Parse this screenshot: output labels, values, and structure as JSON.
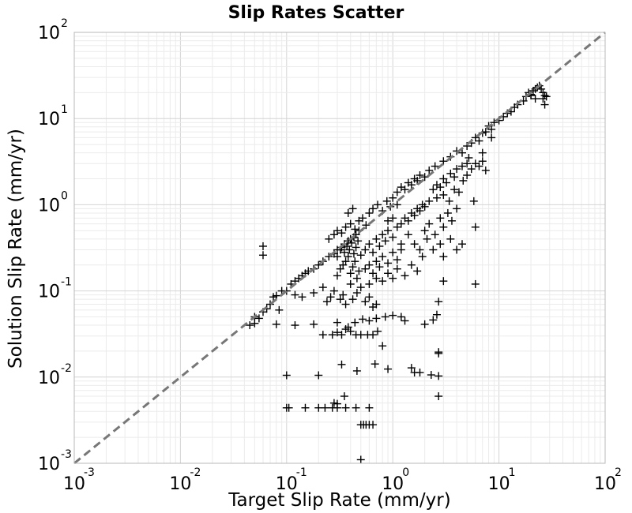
{
  "chart_data": {
    "type": "scatter",
    "title": "Slip Rates Scatter",
    "xlabel": "Target Slip Rate (mm/yr)",
    "ylabel": "Solution Slip Rate (mm/yr)",
    "xscale": "log",
    "yscale": "log",
    "xlim": [
      0.001,
      100
    ],
    "ylim": [
      0.001,
      100
    ],
    "grid": true,
    "marker": "plus",
    "marker_color": "#000000",
    "reference_line": {
      "type": "y=x",
      "style": "dashed",
      "color": "#777777"
    },
    "ticks": [
      {
        "base": "10",
        "exp": "-3",
        "value": 0.001
      },
      {
        "base": "10",
        "exp": "-2",
        "value": 0.01
      },
      {
        "base": "10",
        "exp": "-1",
        "value": 0.1
      },
      {
        "base": "10",
        "exp": "0",
        "value": 1
      },
      {
        "base": "10",
        "exp": "1",
        "value": 10
      },
      {
        "base": "10",
        "exp": "2",
        "value": 100
      }
    ],
    "points": [
      [
        0.1,
        0.0044
      ],
      [
        0.105,
        0.0044
      ],
      [
        0.15,
        0.0044
      ],
      [
        0.2,
        0.0044
      ],
      [
        0.23,
        0.0044
      ],
      [
        0.27,
        0.0044
      ],
      [
        0.3,
        0.0044
      ],
      [
        0.36,
        0.0044
      ],
      [
        0.45,
        0.0044
      ],
      [
        0.6,
        0.0044
      ],
      [
        0.28,
        0.005
      ],
      [
        0.3,
        0.0049
      ],
      [
        0.35,
        0.006
      ],
      [
        0.5,
        0.0028
      ],
      [
        0.53,
        0.0028
      ],
      [
        0.56,
        0.0028
      ],
      [
        0.6,
        0.0028
      ],
      [
        0.65,
        0.0028
      ],
      [
        0.5,
        0.0011
      ],
      [
        0.1,
        0.0105
      ],
      [
        0.2,
        0.0105
      ],
      [
        0.33,
        0.014
      ],
      [
        0.46,
        0.0118
      ],
      [
        0.68,
        0.0142
      ],
      [
        0.9,
        0.0124
      ],
      [
        1.5,
        0.0128
      ],
      [
        1.6,
        0.0113
      ],
      [
        1.8,
        0.0113
      ],
      [
        2.3,
        0.0106
      ],
      [
        2.7,
        0.0103
      ],
      [
        2.7,
        0.006
      ],
      [
        2.7,
        0.0188
      ],
      [
        2.7,
        0.0195
      ],
      [
        0.22,
        0.031
      ],
      [
        0.27,
        0.031
      ],
      [
        0.3,
        0.033
      ],
      [
        0.33,
        0.031
      ],
      [
        0.36,
        0.036
      ],
      [
        0.4,
        0.034
      ],
      [
        0.45,
        0.031
      ],
      [
        0.5,
        0.031
      ],
      [
        0.58,
        0.031
      ],
      [
        0.65,
        0.031
      ],
      [
        0.72,
        0.034
      ],
      [
        0.8,
        0.023
      ],
      [
        0.08,
        0.041
      ],
      [
        0.12,
        0.04
      ],
      [
        0.18,
        0.041
      ],
      [
        0.3,
        0.043
      ],
      [
        0.38,
        0.038
      ],
      [
        0.44,
        0.043
      ],
      [
        0.52,
        0.047
      ],
      [
        0.6,
        0.045
      ],
      [
        0.7,
        0.048
      ],
      [
        0.85,
        0.05
      ],
      [
        1.0,
        0.052
      ],
      [
        1.2,
        0.05
      ],
      [
        1.3,
        0.045
      ],
      [
        2.0,
        0.041
      ],
      [
        2.4,
        0.046
      ],
      [
        0.045,
        0.04
      ],
      [
        0.05,
        0.042
      ],
      [
        0.055,
        0.048
      ],
      [
        0.06,
        0.057
      ],
      [
        0.065,
        0.062
      ],
      [
        0.085,
        0.06
      ],
      [
        0.075,
        0.085
      ],
      [
        0.08,
        0.088
      ],
      [
        0.09,
        0.1
      ],
      [
        0.1,
        0.1
      ],
      [
        0.11,
        0.12
      ],
      [
        0.12,
        0.13
      ],
      [
        0.13,
        0.14
      ],
      [
        0.14,
        0.15
      ],
      [
        0.15,
        0.16
      ],
      [
        0.16,
        0.17
      ],
      [
        0.18,
        0.18
      ],
      [
        0.2,
        0.2
      ],
      [
        0.22,
        0.22
      ],
      [
        0.25,
        0.25
      ],
      [
        0.28,
        0.27
      ],
      [
        0.3,
        0.3
      ],
      [
        0.33,
        0.32
      ],
      [
        0.35,
        0.35
      ],
      [
        0.38,
        0.38
      ],
      [
        0.4,
        0.4
      ],
      [
        0.43,
        0.42
      ],
      [
        0.45,
        0.45
      ],
      [
        0.48,
        0.5
      ],
      [
        0.06,
        0.33
      ],
      [
        0.06,
        0.26
      ],
      [
        0.12,
        0.09
      ],
      [
        0.14,
        0.085
      ],
      [
        0.18,
        0.095
      ],
      [
        0.22,
        0.11
      ],
      [
        0.24,
        0.075
      ],
      [
        0.26,
        0.085
      ],
      [
        0.28,
        0.1
      ],
      [
        0.32,
        0.08
      ],
      [
        0.34,
        0.09
      ],
      [
        0.36,
        0.07
      ],
      [
        0.4,
        0.12
      ],
      [
        0.42,
        0.08
      ],
      [
        0.46,
        0.095
      ],
      [
        0.5,
        0.11
      ],
      [
        0.55,
        0.075
      ],
      [
        0.6,
        0.085
      ],
      [
        0.65,
        0.065
      ],
      [
        0.7,
        0.07
      ],
      [
        0.3,
        0.15
      ],
      [
        0.32,
        0.18
      ],
      [
        0.34,
        0.2
      ],
      [
        0.36,
        0.22
      ],
      [
        0.38,
        0.25
      ],
      [
        0.4,
        0.16
      ],
      [
        0.42,
        0.19
      ],
      [
        0.44,
        0.22
      ],
      [
        0.46,
        0.14
      ],
      [
        0.48,
        0.17
      ],
      [
        0.3,
        0.25
      ],
      [
        0.32,
        0.3
      ],
      [
        0.35,
        0.28
      ],
      [
        0.37,
        0.33
      ],
      [
        0.39,
        0.3
      ],
      [
        0.41,
        0.36
      ],
      [
        0.43,
        0.27
      ],
      [
        0.45,
        0.32
      ],
      [
        0.47,
        0.38
      ],
      [
        0.5,
        0.26
      ],
      [
        0.25,
        0.4
      ],
      [
        0.28,
        0.45
      ],
      [
        0.3,
        0.5
      ],
      [
        0.33,
        0.47
      ],
      [
        0.36,
        0.55
      ],
      [
        0.4,
        0.6
      ],
      [
        0.44,
        0.52
      ],
      [
        0.48,
        0.65
      ],
      [
        0.52,
        0.7
      ],
      [
        0.56,
        0.58
      ],
      [
        0.38,
        0.8
      ],
      [
        0.42,
        0.9
      ],
      [
        0.6,
        0.8
      ],
      [
        0.65,
        0.9
      ],
      [
        0.72,
        1.0
      ],
      [
        0.8,
        0.85
      ],
      [
        0.88,
        1.1
      ],
      [
        0.95,
        0.95
      ],
      [
        1.0,
        1.2
      ],
      [
        1.1,
        1.0
      ],
      [
        0.55,
        0.3
      ],
      [
        0.6,
        0.35
      ],
      [
        0.65,
        0.28
      ],
      [
        0.7,
        0.4
      ],
      [
        0.75,
        0.33
      ],
      [
        0.8,
        0.45
      ],
      [
        0.85,
        0.38
      ],
      [
        0.9,
        0.5
      ],
      [
        1.0,
        0.42
      ],
      [
        1.1,
        0.55
      ],
      [
        0.55,
        0.18
      ],
      [
        0.6,
        0.2
      ],
      [
        0.65,
        0.16
      ],
      [
        0.7,
        0.22
      ],
      [
        0.75,
        0.19
      ],
      [
        0.8,
        0.25
      ],
      [
        0.9,
        0.21
      ],
      [
        1.0,
        0.28
      ],
      [
        1.1,
        0.23
      ],
      [
        1.2,
        0.3
      ],
      [
        0.6,
        0.12
      ],
      [
        0.7,
        0.14
      ],
      [
        0.8,
        0.13
      ],
      [
        0.9,
        0.16
      ],
      [
        1.0,
        0.14
      ],
      [
        1.1,
        0.18
      ],
      [
        1.3,
        0.15
      ],
      [
        1.5,
        0.2
      ],
      [
        1.7,
        0.17
      ],
      [
        1.9,
        0.25
      ],
      [
        1.2,
        0.6
      ],
      [
        1.3,
        0.7
      ],
      [
        1.4,
        0.65
      ],
      [
        1.5,
        0.8
      ],
      [
        1.6,
        0.75
      ],
      [
        1.7,
        0.9
      ],
      [
        1.8,
        0.85
      ],
      [
        1.9,
        1.0
      ],
      [
        2.0,
        0.95
      ],
      [
        2.2,
        1.1
      ],
      [
        1.1,
        1.4
      ],
      [
        1.2,
        1.6
      ],
      [
        1.3,
        1.5
      ],
      [
        1.4,
        1.8
      ],
      [
        1.5,
        1.7
      ],
      [
        1.6,
        2.0
      ],
      [
        1.7,
        1.9
      ],
      [
        1.8,
        2.2
      ],
      [
        2.0,
        2.1
      ],
      [
        2.2,
        2.5
      ],
      [
        2.4,
        1.5
      ],
      [
        2.6,
        1.7
      ],
      [
        2.8,
        1.6
      ],
      [
        3.0,
        2.0
      ],
      [
        3.2,
        1.8
      ],
      [
        3.5,
        2.3
      ],
      [
        3.8,
        2.1
      ],
      [
        4.0,
        2.6
      ],
      [
        4.5,
        2.8
      ],
      [
        5.0,
        3.0
      ],
      [
        2.0,
        0.5
      ],
      [
        2.2,
        0.6
      ],
      [
        2.5,
        0.45
      ],
      [
        2.8,
        0.7
      ],
      [
        3.0,
        0.55
      ],
      [
        3.3,
        0.8
      ],
      [
        3.6,
        0.65
      ],
      [
        4.0,
        0.9
      ],
      [
        2.4,
        0.3
      ],
      [
        2.8,
        0.35
      ],
      [
        3.0,
        0.25
      ],
      [
        3.5,
        0.4
      ],
      [
        4.0,
        0.3
      ],
      [
        1.6,
        0.35
      ],
      [
        1.8,
        0.3
      ],
      [
        2.1,
        0.4
      ],
      [
        1.4,
        0.45
      ],
      [
        1.2,
        0.35
      ],
      [
        2.6,
        1.2
      ],
      [
        3.0,
        1.3
      ],
      [
        3.4,
        1.1
      ],
      [
        3.8,
        1.5
      ],
      [
        4.2,
        1.4
      ],
      [
        4.6,
        1.9
      ],
      [
        5.0,
        2.2
      ],
      [
        5.5,
        2.6
      ],
      [
        6.0,
        3.0
      ],
      [
        6.5,
        2.8
      ],
      [
        7.0,
        3.2
      ],
      [
        5.2,
        3.5
      ],
      [
        2.5,
        2.8
      ],
      [
        3.0,
        3.2
      ],
      [
        3.5,
        3.6
      ],
      [
        4.0,
        4.2
      ],
      [
        4.5,
        4.0
      ],
      [
        5.0,
        4.8
      ],
      [
        5.5,
        5.2
      ],
      [
        6.0,
        6.0
      ],
      [
        6.5,
        5.5
      ],
      [
        7.0,
        6.8
      ],
      [
        7.5,
        7.0
      ],
      [
        8.0,
        8.2
      ],
      [
        8.5,
        7.5
      ],
      [
        9.0,
        9.0
      ],
      [
        10.0,
        9.5
      ],
      [
        11.0,
        10.5
      ],
      [
        12.0,
        11.5
      ],
      [
        13.0,
        12.0
      ],
      [
        14.0,
        13.5
      ],
      [
        15.0,
        14.5
      ],
      [
        17.0,
        16.0
      ],
      [
        18.0,
        18.0
      ],
      [
        19.0,
        20.0
      ],
      [
        20.0,
        19.0
      ],
      [
        21.0,
        21.0
      ],
      [
        22.0,
        22.0
      ],
      [
        23.0,
        23.0
      ],
      [
        24.0,
        24.0
      ],
      [
        25.0,
        22.0
      ],
      [
        26.0,
        20.0
      ],
      [
        27.0,
        18.5
      ],
      [
        28.0,
        18.0
      ],
      [
        26.0,
        17.0
      ],
      [
        27.0,
        14.5
      ],
      [
        22.0,
        17.0
      ],
      [
        20.0,
        18.5
      ],
      [
        7.0,
        4.0
      ],
      [
        8.5,
        6.0
      ],
      [
        7.5,
        2.5
      ],
      [
        5.8,
        1.1
      ],
      [
        6.0,
        0.55
      ],
      [
        4.5,
        0.35
      ],
      [
        6.0,
        0.12
      ],
      [
        3.0,
        0.13
      ],
      [
        2.7,
        0.075
      ],
      [
        2.6,
        0.053
      ],
      [
        0.05,
        0.05
      ],
      [
        0.07,
        0.07
      ],
      [
        1.0,
        0.7
      ],
      [
        0.9,
        0.65
      ]
    ]
  }
}
